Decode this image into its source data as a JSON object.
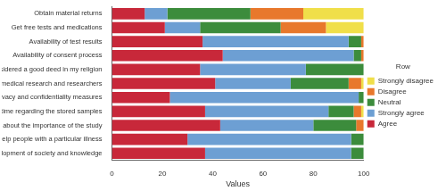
{
  "chart_data": {
    "type": "bar",
    "orientation": "horizontal",
    "stacked": true,
    "x_label": "Values",
    "legend_title": "Row",
    "legend": "right",
    "grid": false,
    "categories": [
      "Obtain material returns",
      "Get free tests and medications",
      "Availability of test results",
      "Availability of consent process",
      "Sample donation is considered a good deed in my religion",
      "I trust biomedical research and researchers",
      "Presence of strong privacy and confidentiality measures",
      "Having the right to withdraw my consent any time regarding the stored samples",
      "Because of the information provided about the importance of the study",
      "To help people with a particular illness",
      "Contribute to the development of society and knowledge"
    ],
    "series": [
      {
        "name": "Agree",
        "color": "#c8283a",
        "values": [
          13,
          21,
          36,
          44,
          35,
          41,
          23,
          37,
          43,
          30,
          37
        ]
      },
      {
        "name": "Strongly agree",
        "color": "#6d9fd3",
        "values": [
          9,
          14,
          58,
          52,
          42,
          30,
          75,
          49,
          37,
          65,
          58
        ]
      },
      {
        "name": "Neutral",
        "color": "#3c8c3c",
        "values": [
          33,
          32,
          5,
          3,
          23,
          23,
          2,
          10,
          17,
          5,
          5
        ]
      },
      {
        "name": "Disagree",
        "color": "#e8782c",
        "values": [
          21,
          18,
          1,
          1,
          0,
          5,
          0,
          3,
          3,
          0,
          0
        ]
      },
      {
        "name": "Strongly disagree",
        "color": "#f0df4a",
        "values": [
          24,
          15,
          0,
          0,
          0,
          1,
          0,
          1,
          0,
          0,
          0
        ]
      }
    ],
    "xlim": [
      0,
      100
    ],
    "xticks": [
      0,
      20,
      40,
      60,
      80,
      100
    ]
  }
}
